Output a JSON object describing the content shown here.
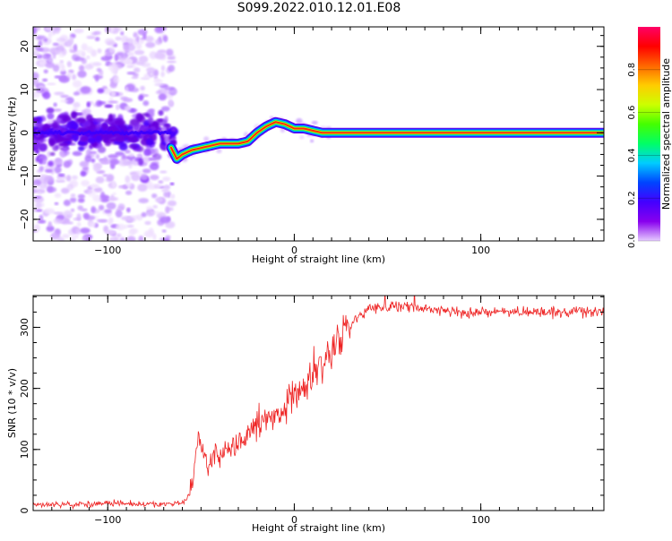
{
  "figure": {
    "title": "S099.2022.010.12.01.E08"
  },
  "chart_data": [
    {
      "type": "heatmap",
      "xlabel": "Height of straight line (km)",
      "ylabel": "Frequency (Hz)",
      "xlim": [
        -140,
        166
      ],
      "ylim": [
        -25,
        24.5
      ],
      "x_ticks": [
        -100,
        0,
        100
      ],
      "x_tick_labels": [
        "-100",
        "0",
        "100"
      ],
      "y_ticks": [
        -20,
        -10,
        0,
        10,
        20
      ],
      "y_tick_labels": [
        "-20",
        "-10",
        "0",
        "10",
        "20"
      ],
      "grid": false,
      "ridge": {
        "x": [
          -140,
          -70,
          -63,
          -60,
          -55,
          -50,
          -45,
          -40,
          -35,
          -30,
          -25,
          -20,
          -15,
          -10,
          -5,
          0,
          5,
          10,
          15,
          80,
          166
        ],
        "y": [
          0,
          0,
          -6,
          -5,
          -4,
          -3.5,
          -3,
          -2.5,
          -2.5,
          -2.5,
          -2,
          0,
          1.5,
          2.5,
          2,
          1,
          1,
          0.5,
          0,
          0,
          0
        ]
      },
      "colorbar": {
        "label": "Normalized spectral amplitude",
        "range": [
          0,
          1
        ],
        "ticks": [
          0,
          0.2,
          0.4,
          0.6,
          0.8
        ],
        "tick_labels": [
          "0.0",
          "0.2",
          "0.4",
          "0.6",
          "0.8"
        ],
        "colors": [
          "#e6ccff",
          "#8800ee",
          "#4400ff",
          "#0044ff",
          "#00ccff",
          "#00ff66",
          "#44ff00",
          "#ccff00",
          "#ffcc00",
          "#ff6600",
          "#ff0000",
          "#ff0066"
        ]
      }
    },
    {
      "type": "line",
      "xlabel": "Height of straight line (km)",
      "ylabel": "SNR (10 * v/v)",
      "xlim": [
        -140,
        166
      ],
      "ylim": [
        0,
        352
      ],
      "x_ticks": [
        -100,
        0,
        100
      ],
      "x_tick_labels": [
        "-100",
        "0",
        "100"
      ],
      "y_ticks": [
        0,
        100,
        200,
        300
      ],
      "y_tick_labels": [
        "0",
        "100",
        "200",
        "300"
      ],
      "grid": false,
      "series": [
        {
          "color": "#ee2222",
          "x": [
            -140,
            -120,
            -100,
            -80,
            -60,
            -56,
            -54,
            -52,
            -50,
            -47,
            -45,
            -40,
            -35,
            -30,
            -25,
            -20,
            -15,
            -10,
            -5,
            0,
            5,
            10,
            15,
            20,
            25,
            30,
            35,
            40,
            50,
            60,
            70,
            80,
            90,
            100,
            110,
            120,
            130,
            140,
            150,
            166
          ],
          "y": [
            10,
            10,
            12,
            10,
            12,
            25,
            60,
            120,
            100,
            70,
            80,
            90,
            100,
            110,
            125,
            140,
            150,
            160,
            175,
            190,
            200,
            220,
            240,
            265,
            285,
            305,
            320,
            330,
            335,
            335,
            330,
            328,
            325,
            325,
            325,
            325,
            325,
            325,
            325,
            325
          ]
        }
      ]
    }
  ]
}
